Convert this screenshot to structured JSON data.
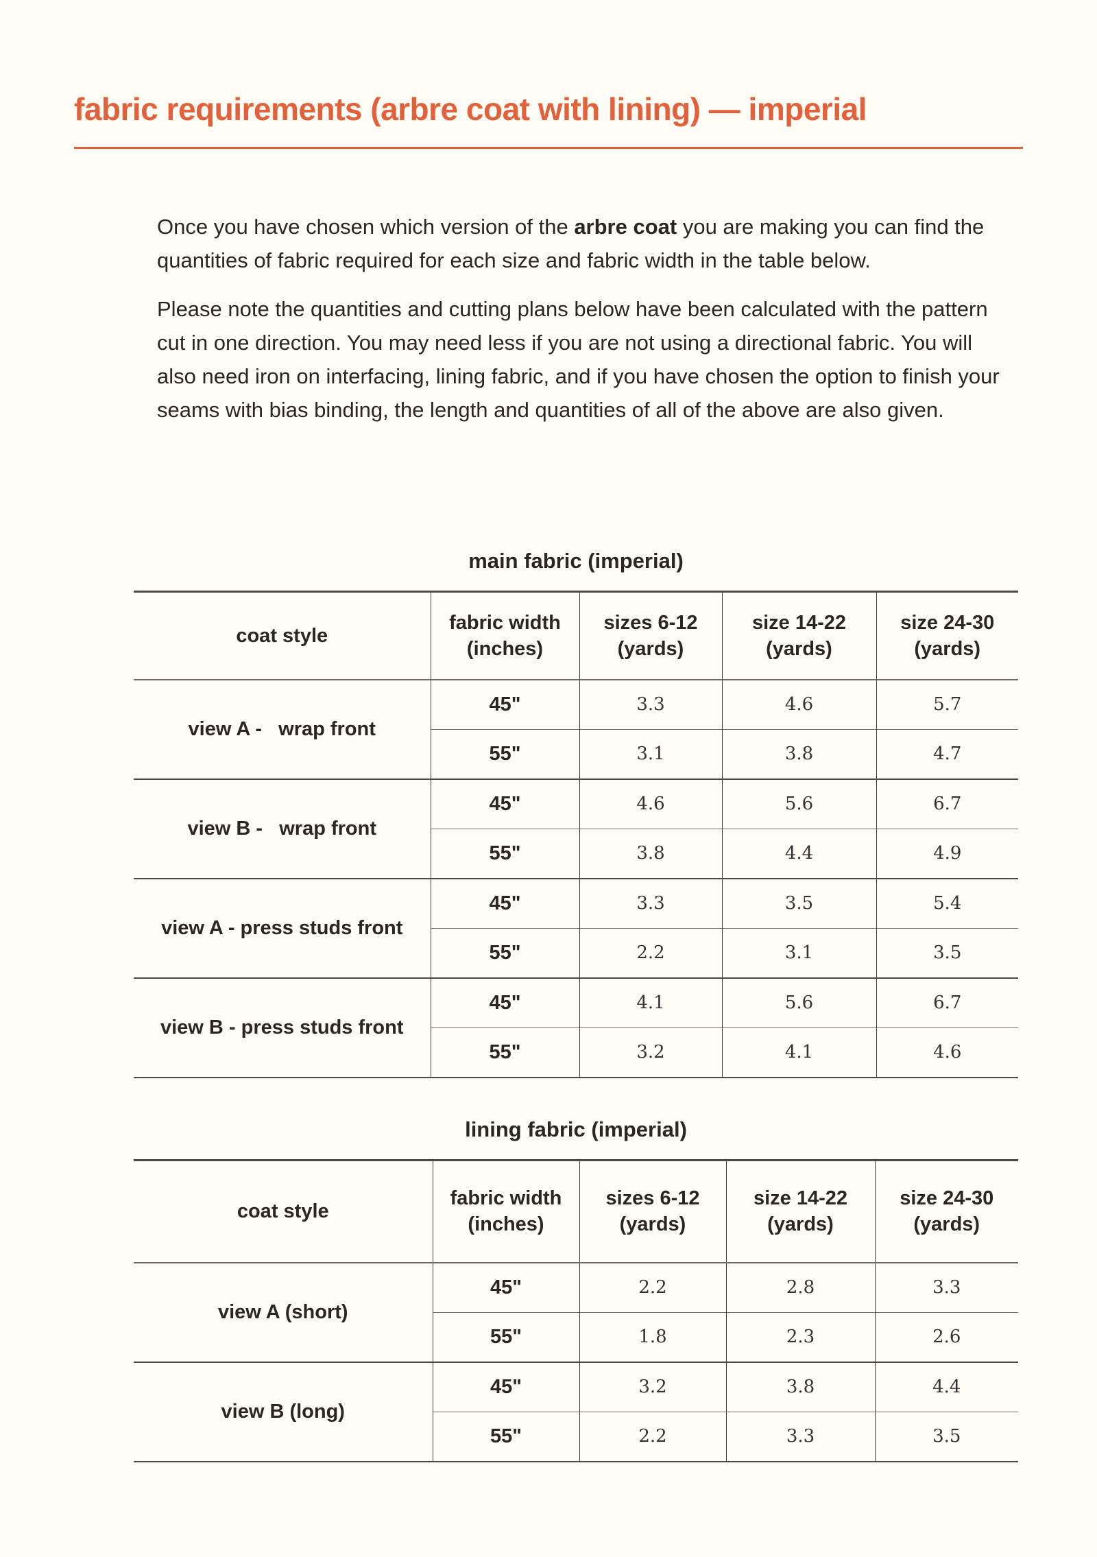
{
  "title": "fabric requirements (arbre coat with lining) — imperial",
  "colors": {
    "accent": "#e2603a",
    "text": "#2b2622",
    "background": "#fffdf5"
  },
  "intro": {
    "p1_before": "Once you have chosen which version of the ",
    "p1_bold": "arbre coat",
    "p1_after": " you are making you can find the quantities of fabric required for each size and fabric width in the table below.",
    "p2": "Please note the quantities and cutting plans below have been calculated with the pattern cut in one direction. You may need less if you are not using a directional fabric. You will also need iron on interfacing, lining fabric, and if you have chosen the option to finish your seams with bias binding, the length and quantities of all of the above are also given."
  },
  "tables": [
    {
      "caption": "main fabric (imperial)",
      "headers": [
        "coat style",
        "fabric width\n(inches)",
        "sizes 6-12\n(yards)",
        "size 14-22\n(yards)",
        "size 24-30\n(yards)"
      ],
      "groups": [
        {
          "style": "view A -   wrap front",
          "rows": [
            {
              "width": "45\"",
              "values": [
                "3.3",
                "4.6",
                "5.7"
              ]
            },
            {
              "width": "55\"",
              "values": [
                "3.1",
                "3.8",
                "4.7"
              ]
            }
          ]
        },
        {
          "style": "view B -   wrap front",
          "rows": [
            {
              "width": "45\"",
              "values": [
                "4.6",
                "5.6",
                "6.7"
              ]
            },
            {
              "width": "55\"",
              "values": [
                "3.8",
                "4.4",
                "4.9"
              ]
            }
          ]
        },
        {
          "style": "view A - press studs front",
          "rows": [
            {
              "width": "45\"",
              "values": [
                "3.3",
                "3.5",
                "5.4"
              ]
            },
            {
              "width": "55\"",
              "values": [
                "2.2",
                "3.1",
                "3.5"
              ]
            }
          ]
        },
        {
          "style": "view B - press studs front",
          "rows": [
            {
              "width": "45\"",
              "values": [
                "4.1",
                "5.6",
                "6.7"
              ]
            },
            {
              "width": "55\"",
              "values": [
                "3.2",
                "4.1",
                "4.6"
              ]
            }
          ]
        }
      ]
    },
    {
      "caption": "lining fabric (imperial)",
      "headers": [
        "coat style",
        "fabric width\n(inches)",
        "sizes 6-12\n(yards)",
        "size 14-22\n(yards)",
        "size 24-30\n(yards)"
      ],
      "groups": [
        {
          "style": "view A (short)",
          "rows": [
            {
              "width": "45\"",
              "values": [
                "2.2",
                "2.8",
                "3.3"
              ]
            },
            {
              "width": "55\"",
              "values": [
                "1.8",
                "2.3",
                "2.6"
              ]
            }
          ]
        },
        {
          "style": "view B (long)",
          "rows": [
            {
              "width": "45\"",
              "values": [
                "3.2",
                "3.8",
                "4.4"
              ]
            },
            {
              "width": "55\"",
              "values": [
                "2.2",
                "3.3",
                "3.5"
              ]
            }
          ]
        }
      ]
    }
  ]
}
